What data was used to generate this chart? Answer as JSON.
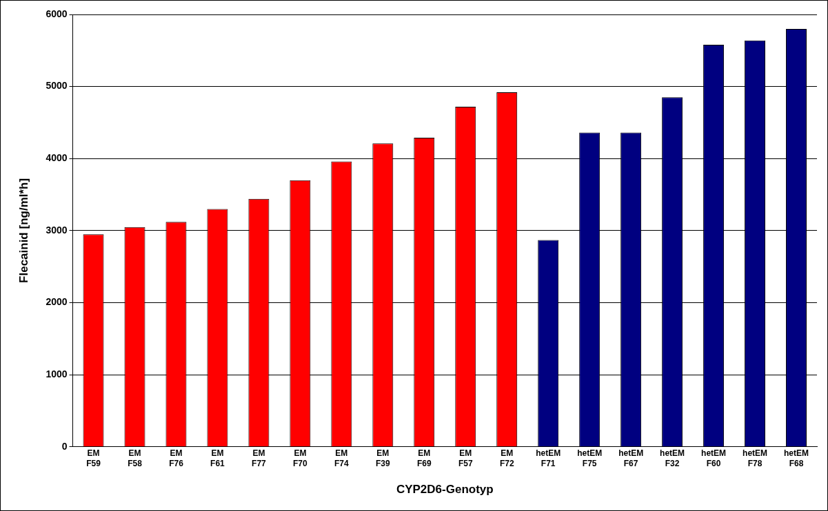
{
  "chart_data": {
    "type": "bar",
    "xlabel": "CYP2D6-Genotyp",
    "ylabel": "Flecainid [ng/ml*h]",
    "categories": [
      "EM F59",
      "EM F58",
      "EM F76",
      "EM F61",
      "EM F77",
      "EM F70",
      "EM F74",
      "EM F39",
      "EM F69",
      "EM F57",
      "EM F72",
      "hetEM F71",
      "hetEM F75",
      "hetEM F67",
      "hetEM F32",
      "hetEM F60",
      "hetEM F78",
      "hetEM F68"
    ],
    "values": [
      2950,
      3050,
      3120,
      3300,
      3440,
      3700,
      3960,
      4210,
      4290,
      4720,
      4920,
      2870,
      4360,
      4360,
      4850,
      5580,
      5640,
      5800
    ],
    "colors": [
      "#ff0000",
      "#ff0000",
      "#ff0000",
      "#ff0000",
      "#ff0000",
      "#ff0000",
      "#ff0000",
      "#ff0000",
      "#ff0000",
      "#ff0000",
      "#ff0000",
      "#000080",
      "#000080",
      "#000080",
      "#000080",
      "#000080",
      "#000080",
      "#000080"
    ],
    "ylim": [
      0,
      6000
    ],
    "yticks": [
      0,
      1000,
      2000,
      3000,
      4000,
      5000,
      6000
    ],
    "grid": "y",
    "legend": false
  }
}
